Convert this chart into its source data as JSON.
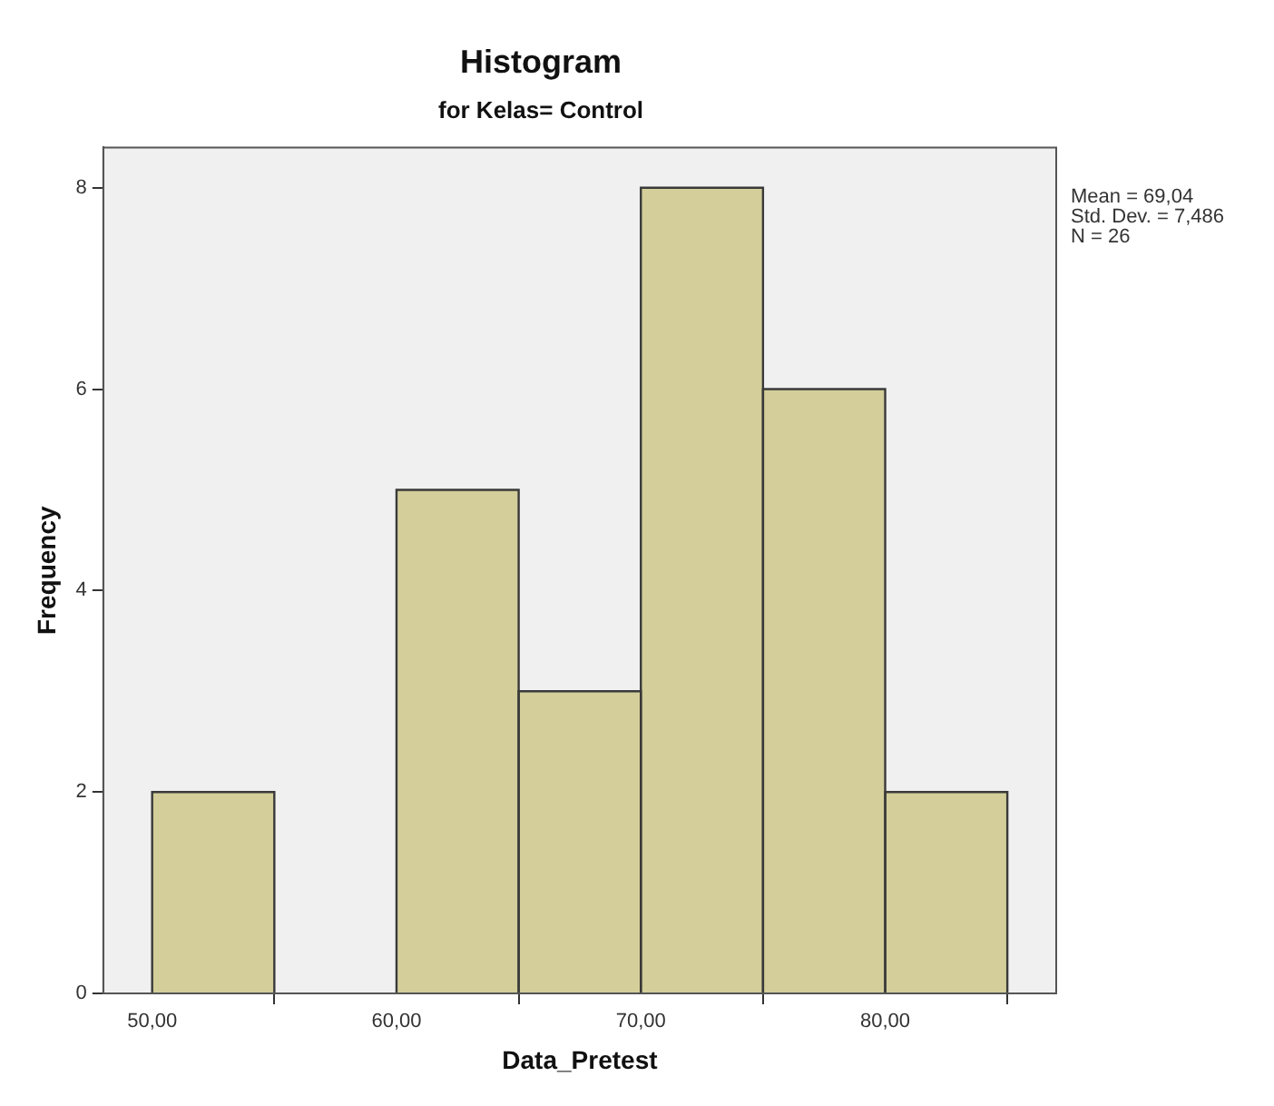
{
  "chart_data": {
    "type": "histogram",
    "title": "Histogram",
    "subtitle": "for Kelas= Control",
    "xlabel": "Data_Pretest",
    "ylabel": "Frequency",
    "bins": [
      50,
      55,
      60,
      65,
      70,
      75,
      80,
      85
    ],
    "values": [
      2,
      0,
      5,
      3,
      8,
      6,
      2
    ],
    "color": "#d3ce9a",
    "xlim": [
      48,
      87
    ],
    "ylim": [
      0,
      8.4
    ],
    "xticks": [
      {
        "value": 50,
        "label": "50,00"
      },
      {
        "value": 60,
        "label": "60,00"
      },
      {
        "value": 70,
        "label": "70,00"
      },
      {
        "value": 80,
        "label": "80,00"
      }
    ],
    "yticks": [
      0,
      2,
      4,
      6,
      8
    ],
    "grid": false,
    "annotations": [
      "Mean = 69,04",
      "Std. Dev. = 7,486",
      "N = 26"
    ]
  }
}
